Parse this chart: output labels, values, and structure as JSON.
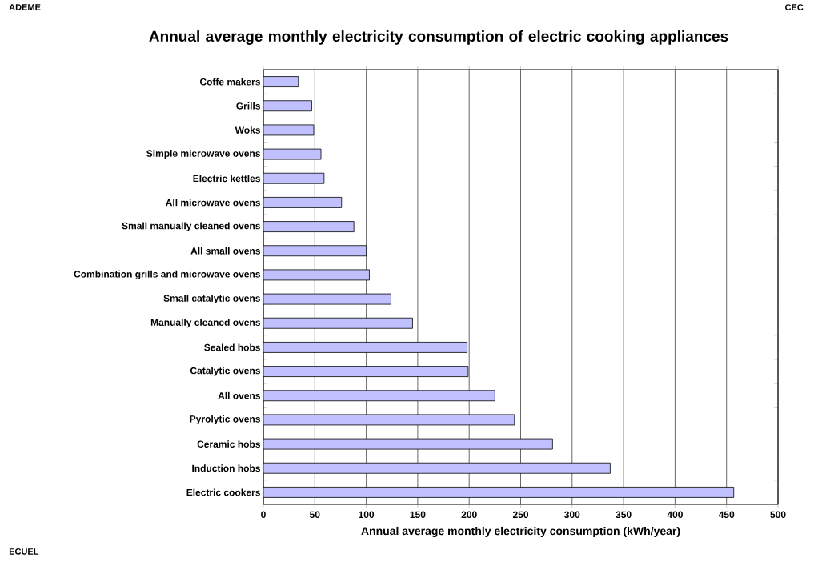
{
  "chart_data": {
    "type": "bar",
    "orientation": "horizontal",
    "title": "Annual average monthly electricity consumption of electric cooking appliances",
    "xlabel": "Annual average monthly electricity consumption (kWh/year)",
    "categories": [
      "Coffe makers",
      "Grills",
      "Woks",
      "Simple microwave ovens",
      "Electric kettles",
      "All microwave ovens",
      "Small manually cleaned ovens",
      "All small ovens",
      "Combination grills and microwave ovens",
      "Small catalytic ovens",
      "Manually cleaned ovens",
      "Sealed hobs",
      "Catalytic ovens",
      "All ovens",
      "Pyrolytic ovens",
      "Ceramic hobs",
      "Induction hobs",
      "Electric cookers"
    ],
    "values": [
      34,
      47,
      49,
      56,
      59,
      76,
      88,
      100,
      103,
      124,
      145,
      198,
      199,
      225,
      244,
      281,
      337,
      457
    ],
    "color": "#c0c0ff",
    "xlim": [
      0,
      500
    ],
    "xticks": [
      0,
      50,
      100,
      150,
      200,
      250,
      300,
      350,
      400,
      450,
      500
    ],
    "grid": "x",
    "annotations": [
      "ADEME",
      "CEC",
      "ECUEL"
    ]
  }
}
